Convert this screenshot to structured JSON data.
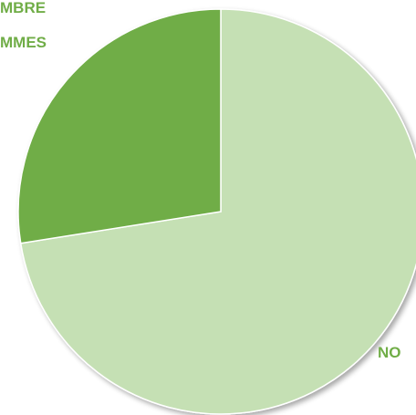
{
  "chart_data": {
    "type": "pie",
    "slices": [
      {
        "label_lines": [
          "NO"
        ],
        "value": 72.5,
        "color": "#c5e0b4"
      },
      {
        "label_lines": [
          "MBRE",
          "MMES"
        ],
        "value": 27.5,
        "color": "#70ad47"
      }
    ],
    "start_angle_deg": 0,
    "direction": "clockwise",
    "label_color": "#70ad47"
  }
}
